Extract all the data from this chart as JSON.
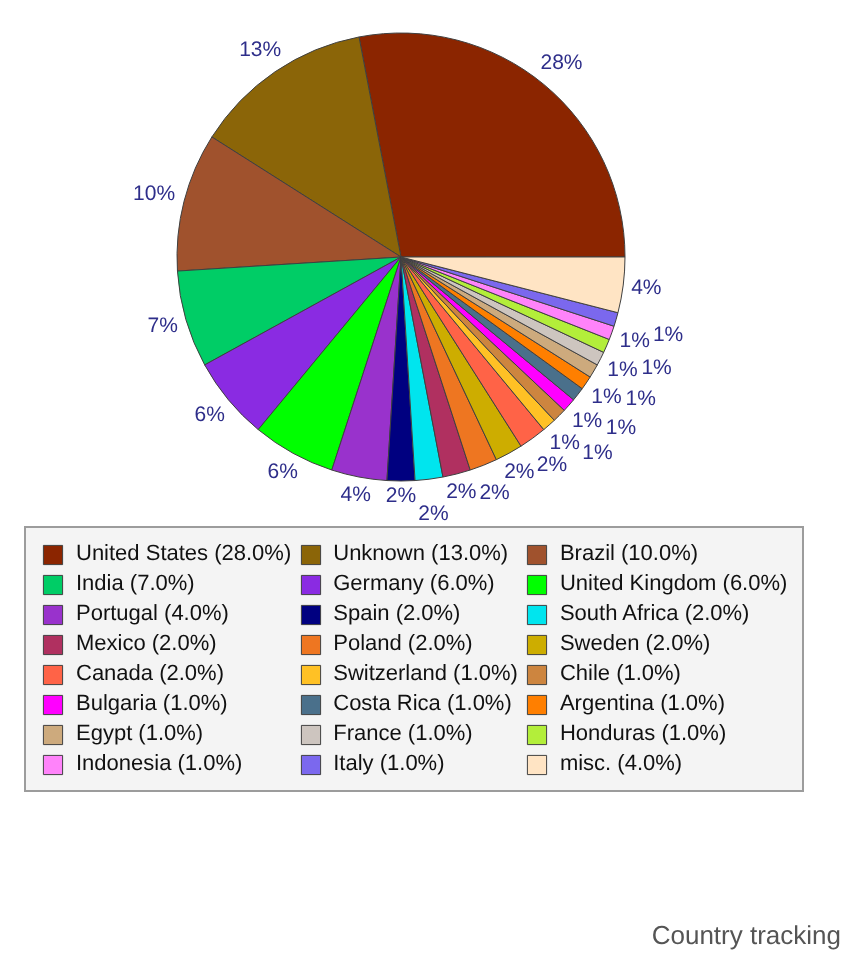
{
  "chart_data": {
    "type": "pie",
    "title": "Country tracking",
    "categories": [
      "United States (28.0%)",
      "Unknown (13.0%)",
      "Brazil (10.0%)",
      "India (7.0%)",
      "Germany (6.0%)",
      "United Kingdom (6.0%)",
      "Portugal (4.0%)",
      "Spain (2.0%)",
      "South Africa (2.0%)",
      "Mexico (2.0%)",
      "Poland (2.0%)",
      "Sweden (2.0%)",
      "Canada (2.0%)",
      "Switzerland (1.0%)",
      "Chile (1.0%)",
      "Bulgaria (1.0%)",
      "Costa Rica (1.0%)",
      "Argentina (1.0%)",
      "Egypt (1.0%)",
      "France (1.0%)",
      "Honduras (1.0%)",
      "Indonesia (1.0%)",
      "Italy (1.0%)",
      "misc. (4.0%)"
    ],
    "values": [
      28,
      13,
      10,
      7,
      6,
      6,
      4,
      2,
      2,
      2,
      2,
      2,
      2,
      1,
      1,
      1,
      1,
      1,
      1,
      1,
      1,
      1,
      1,
      4
    ],
    "value_labels": [
      "28%",
      "13%",
      "10%",
      "7%",
      "6%",
      "6%",
      "4%",
      "2%",
      "2%",
      "2%",
      "2%",
      "2%",
      "2%",
      "1%",
      "1%",
      "1%",
      "1%",
      "1%",
      "1%",
      "1%",
      "1%",
      "1%",
      "1%",
      "4%"
    ],
    "colors": [
      "#8b2500",
      "#8b6508",
      "#a0522d",
      "#00cd66",
      "#8a2be2",
      "#00ff00",
      "#9932cc",
      "#000080",
      "#00e5ee",
      "#b03060",
      "#ee7621",
      "#cdad00",
      "#ff6347",
      "#ffc125",
      "#cd853f",
      "#ff00ff",
      "#4a708b",
      "#ff7f00",
      "#cdaa7d",
      "#cdc5bf",
      "#b3ee3a",
      "#ff83fa",
      "#7b68ee",
      "#ffe4c4"
    ],
    "legend": "bottom"
  }
}
